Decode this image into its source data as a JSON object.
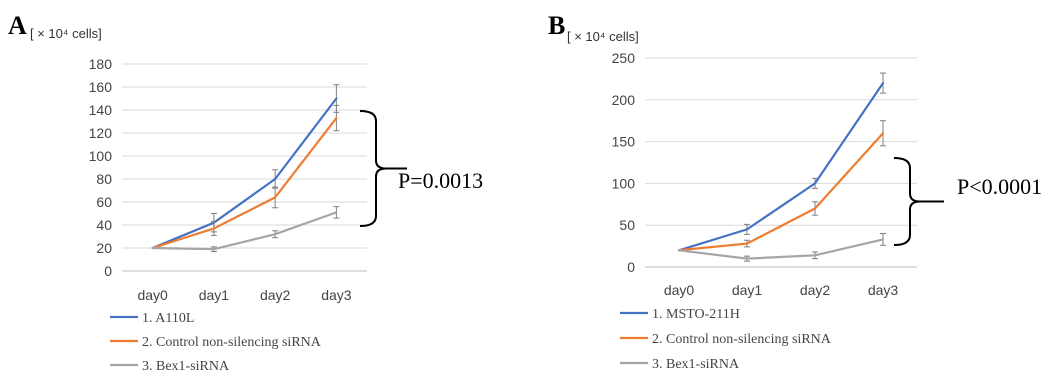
{
  "chart_data": [
    {
      "type": "line",
      "panel": "A",
      "unit_label": "[ × 10⁴ cells]",
      "categories": [
        "day0",
        "day1",
        "day2",
        "day3"
      ],
      "ylim": [
        0,
        180
      ],
      "yticks": [
        0,
        20,
        40,
        60,
        80,
        100,
        120,
        140,
        160,
        180
      ],
      "grid": true,
      "series": [
        {
          "name": "1. A110L",
          "color": "#4472c4",
          "values": [
            20,
            42,
            80,
            150
          ],
          "errors": [
            0,
            8,
            8,
            12
          ]
        },
        {
          "name": "2. Control non-silencing siRNA",
          "color": "#ed7d31",
          "values": [
            20,
            37,
            64,
            133
          ],
          "errors": [
            0,
            6,
            9,
            11
          ]
        },
        {
          "name": "3. Bex1-siRNA",
          "color": "#a5a5a5",
          "values": [
            20,
            19,
            32,
            51
          ],
          "errors": [
            0,
            2,
            3,
            5
          ]
        }
      ],
      "annotation": "P=0.0013",
      "legend_position": "bottom-left"
    },
    {
      "type": "line",
      "panel": "B",
      "unit_label": "[ × 10⁴ cells]",
      "categories": [
        "day0",
        "day1",
        "day2",
        "day3"
      ],
      "ylim": [
        0,
        250
      ],
      "yticks": [
        0,
        50,
        100,
        150,
        200,
        250
      ],
      "grid": true,
      "series": [
        {
          "name": "1. MSTO-211H",
          "color": "#4472c4",
          "values": [
            20,
            45,
            100,
            220
          ],
          "errors": [
            0,
            6,
            6,
            12
          ]
        },
        {
          "name": "2. Control non-silencing siRNA",
          "color": "#ed7d31",
          "values": [
            20,
            28,
            70,
            160
          ],
          "errors": [
            0,
            4,
            8,
            15
          ]
        },
        {
          "name": "3. Bex1-siRNA",
          "color": "#a5a5a5",
          "values": [
            20,
            10,
            14,
            33
          ],
          "errors": [
            0,
            3,
            4,
            7
          ]
        }
      ],
      "annotation": "P<0.0001",
      "legend_position": "bottom-left"
    }
  ]
}
